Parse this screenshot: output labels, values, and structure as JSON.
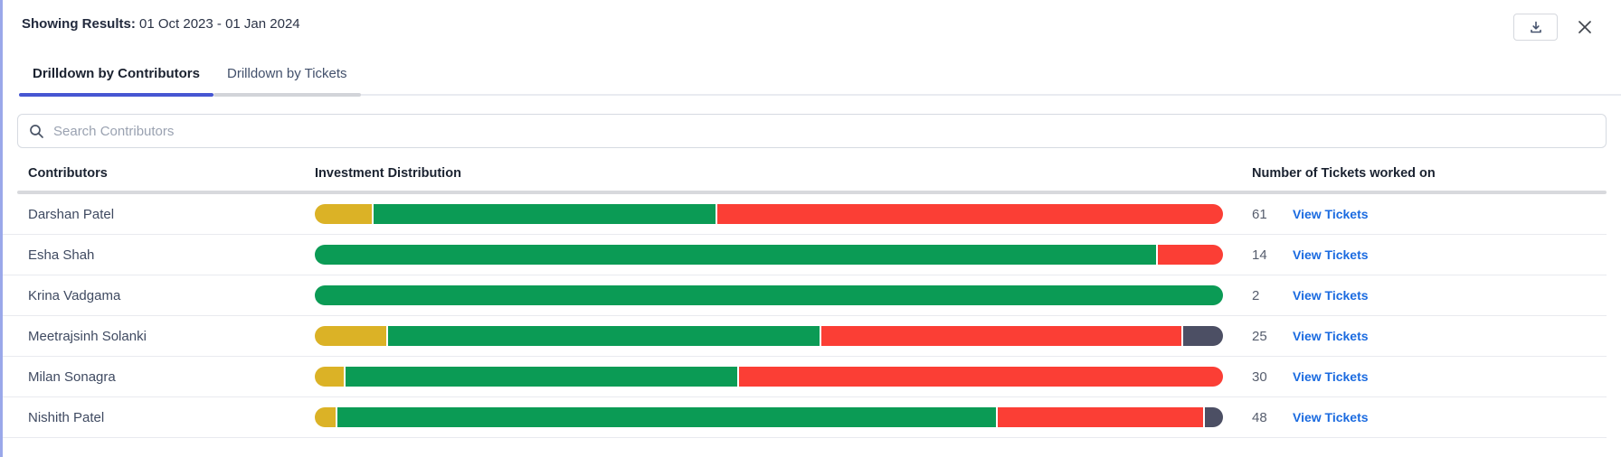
{
  "header": {
    "label": "Showing Results:",
    "date_range": "01 Oct 2023 - 01 Jan 2024"
  },
  "tabs": [
    {
      "label": "Drilldown by Contributors",
      "active": true
    },
    {
      "label": "Drilldown by Tickets",
      "active": false
    }
  ],
  "search": {
    "placeholder": "Search Contributors"
  },
  "table": {
    "columns": {
      "contributors": "Contributors",
      "distribution": "Investment Distribution",
      "tickets": "Number of Tickets worked on"
    },
    "link_label": "View Tickets",
    "rows": [
      {
        "name": "Darshan Patel",
        "tickets": "61",
        "segments": [
          {
            "color": "yellow",
            "pct": 6.3
          },
          {
            "color": "green",
            "pct": 37.8
          },
          {
            "color": "red",
            "pct": 55.9
          }
        ]
      },
      {
        "name": "Esha Shah",
        "tickets": "14",
        "segments": [
          {
            "color": "green",
            "pct": 92.8
          },
          {
            "color": "red",
            "pct": 7.2
          }
        ]
      },
      {
        "name": "Krina Vadgama",
        "tickets": "2",
        "segments": [
          {
            "color": "green",
            "pct": 100
          }
        ]
      },
      {
        "name": "Meetrajsinh Solanki",
        "tickets": "25",
        "segments": [
          {
            "color": "yellow",
            "pct": 7.9
          },
          {
            "color": "green",
            "pct": 47.8
          },
          {
            "color": "red",
            "pct": 39.9
          },
          {
            "color": "slate",
            "pct": 4.4
          }
        ]
      },
      {
        "name": "Milan Sonagra",
        "tickets": "30",
        "segments": [
          {
            "color": "yellow",
            "pct": 3.2
          },
          {
            "color": "green",
            "pct": 43.3
          },
          {
            "color": "red",
            "pct": 53.5
          }
        ]
      },
      {
        "name": "Nishith Patel",
        "tickets": "48",
        "segments": [
          {
            "color": "yellow",
            "pct": 2.3
          },
          {
            "color": "green",
            "pct": 72.9
          },
          {
            "color": "red",
            "pct": 22.8
          },
          {
            "color": "slate",
            "pct": 2.0
          }
        ]
      }
    ]
  },
  "colors": {
    "yellow": "#dbb226",
    "green": "#0b9b55",
    "red": "#fb3e35",
    "slate": "#4c4f64",
    "link_blue": "#1b6be0",
    "tab_active_underline": "#4656d2",
    "left_border": "#9aa8ea"
  },
  "icons": {
    "download": "download-icon",
    "close": "close-icon",
    "search": "search-icon"
  }
}
